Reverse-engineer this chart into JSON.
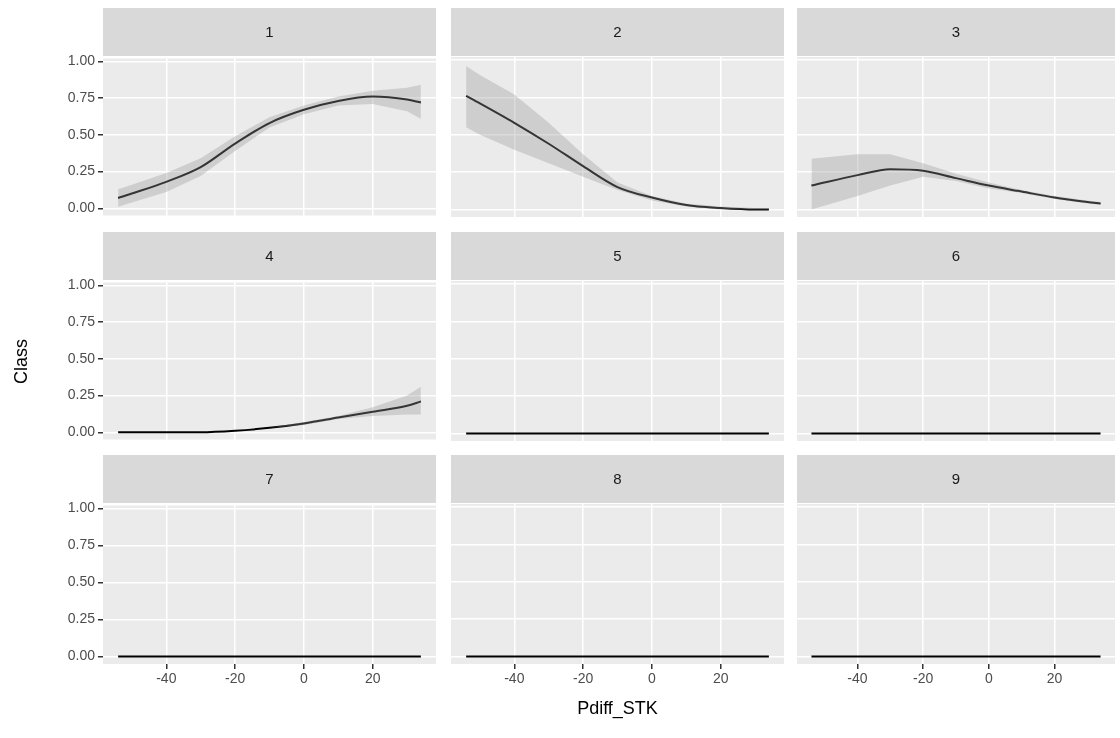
{
  "chart_data": [
    {
      "type": "line",
      "title": "1",
      "x": [
        -54,
        -50,
        -40,
        -30,
        -20,
        -10,
        0,
        10,
        20,
        30,
        34
      ],
      "series": [
        {
          "color": "#000000",
          "values": [
            0.07,
            0.1,
            0.18,
            0.28,
            0.44,
            0.58,
            0.67,
            0.73,
            0.76,
            0.74,
            0.72
          ],
          "lower": [
            0.01,
            0.04,
            0.11,
            0.22,
            0.39,
            0.55,
            0.64,
            0.7,
            0.71,
            0.66,
            0.61
          ],
          "upper": [
            0.13,
            0.16,
            0.24,
            0.34,
            0.49,
            0.62,
            0.7,
            0.76,
            0.8,
            0.82,
            0.84
          ]
        }
      ],
      "xlim": [
        -58.4,
        38.4
      ],
      "xticks": [
        -40,
        -20,
        0,
        20
      ],
      "ylim": [
        -0.05,
        1.02
      ],
      "yticks": [
        {
          "value": 0,
          "label": "0.00"
        },
        {
          "value": 0.25,
          "label": "0.25"
        },
        {
          "value": 0.5,
          "label": "0.50"
        },
        {
          "value": 0.75,
          "label": "0.75"
        },
        {
          "value": 1,
          "label": "1.00"
        }
      ],
      "grid": true,
      "legend": false,
      "tick_labels": "y"
    },
    {
      "type": "line",
      "title": "2",
      "x": [
        -54,
        -50,
        -40,
        -30,
        -20,
        -10,
        0,
        10,
        20,
        30,
        34
      ],
      "series": [
        {
          "color": "#000000",
          "values": [
            0.76,
            0.71,
            0.58,
            0.44,
            0.29,
            0.15,
            0.08,
            0.03,
            0.01,
            0.0,
            0.0
          ],
          "lower": [
            0.55,
            0.5,
            0.4,
            0.31,
            0.22,
            0.13,
            0.06,
            0.02,
            0.0,
            0.0,
            0.0
          ],
          "upper": [
            0.96,
            0.9,
            0.77,
            0.58,
            0.37,
            0.18,
            0.09,
            0.04,
            0.02,
            0.01,
            0.01
          ]
        }
      ],
      "xlim": [
        -58.4,
        38.4
      ],
      "xticks": [
        -40,
        -20,
        0,
        20
      ],
      "ylim": [
        -0.05,
        1.02
      ],
      "yticks": [
        0,
        0.25,
        0.5,
        0.75,
        1
      ],
      "grid": true,
      "legend": false,
      "tick_labels": false
    },
    {
      "type": "line",
      "title": "3",
      "x": [
        -54,
        -40,
        -30,
        -20,
        -10,
        0,
        10,
        20,
        30,
        34
      ],
      "series": [
        {
          "color": "#000000",
          "values": [
            0.16,
            0.23,
            0.27,
            0.26,
            0.21,
            0.16,
            0.12,
            0.08,
            0.05,
            0.04
          ],
          "lower": [
            0.0,
            0.09,
            0.16,
            0.22,
            0.19,
            0.14,
            0.11,
            0.07,
            0.04,
            0.03
          ],
          "upper": [
            0.34,
            0.37,
            0.37,
            0.31,
            0.24,
            0.18,
            0.13,
            0.09,
            0.06,
            0.05
          ]
        }
      ],
      "xlim": [
        -58.4,
        38.4
      ],
      "xticks": [
        -40,
        -20,
        0,
        20
      ],
      "ylim": [
        -0.05,
        1.02
      ],
      "yticks": [
        0,
        0.25,
        0.5,
        0.75,
        1
      ],
      "grid": true,
      "legend": false,
      "tick_labels": false
    },
    {
      "type": "line",
      "title": "4",
      "ylabel": "Class",
      "x": [
        -54,
        -40,
        -30,
        -20,
        -10,
        0,
        10,
        20,
        30,
        34
      ],
      "series": [
        {
          "color": "#000000",
          "values": [
            0,
            0,
            0,
            0.01,
            0.03,
            0.06,
            0.1,
            0.14,
            0.18,
            0.21
          ],
          "lower": [
            0,
            0,
            0,
            0.01,
            0.03,
            0.05,
            0.09,
            0.11,
            0.12,
            0.12
          ],
          "upper": [
            0,
            0,
            0,
            0.01,
            0.03,
            0.07,
            0.11,
            0.17,
            0.25,
            0.31
          ]
        }
      ],
      "xlim": [
        -58.4,
        38.4
      ],
      "xticks": [
        -40,
        -20,
        0,
        20
      ],
      "ylim": [
        -0.05,
        1.02
      ],
      "yticks": [
        {
          "value": 0,
          "label": "0.00"
        },
        {
          "value": 0.25,
          "label": "0.25"
        },
        {
          "value": 0.5,
          "label": "0.50"
        },
        {
          "value": 0.75,
          "label": "0.75"
        },
        {
          "value": 1,
          "label": "1.00"
        }
      ],
      "grid": true,
      "legend": false,
      "tick_labels": "y"
    },
    {
      "type": "line",
      "title": "5",
      "x": [
        -54,
        34
      ],
      "series": [
        {
          "color": "#000000",
          "values": [
            0,
            0
          ]
        }
      ],
      "xlim": [
        -58.4,
        38.4
      ],
      "xticks": [
        -40,
        -20,
        0,
        20
      ],
      "ylim": [
        -0.05,
        1.02
      ],
      "yticks": [
        0,
        0.25,
        0.5,
        0.75,
        1
      ],
      "grid": true,
      "legend": false,
      "tick_labels": false
    },
    {
      "type": "line",
      "title": "6",
      "x": [
        -54,
        34
      ],
      "series": [
        {
          "color": "#000000",
          "values": [
            0,
            0
          ]
        }
      ],
      "xlim": [
        -58.4,
        38.4
      ],
      "xticks": [
        -40,
        -20,
        0,
        20
      ],
      "ylim": [
        -0.05,
        1.02
      ],
      "yticks": [
        0,
        0.25,
        0.5,
        0.75,
        1
      ],
      "grid": true,
      "legend": false,
      "tick_labels": false
    },
    {
      "type": "line",
      "title": "7",
      "x": [
        -54,
        34
      ],
      "series": [
        {
          "color": "#000000",
          "values": [
            0,
            0
          ]
        }
      ],
      "xlim": [
        -58.4,
        38.4
      ],
      "xticks": [
        -40,
        -20,
        0,
        20
      ],
      "ylim": [
        -0.05,
        1.02
      ],
      "yticks": [
        {
          "value": 0,
          "label": "0.00"
        },
        {
          "value": 0.25,
          "label": "0.25"
        },
        {
          "value": 0.5,
          "label": "0.50"
        },
        {
          "value": 0.75,
          "label": "0.75"
        },
        {
          "value": 1,
          "label": "1.00"
        }
      ],
      "grid": true,
      "legend": false
    },
    {
      "type": "line",
      "title": "8",
      "xlabel": "Pdiff_STK",
      "x": [
        -54,
        34
      ],
      "series": [
        {
          "color": "#000000",
          "values": [
            0,
            0
          ]
        }
      ],
      "xlim": [
        -58.4,
        38.4
      ],
      "xticks": [
        -40,
        -20,
        0,
        20
      ],
      "ylim": [
        -0.05,
        1.02
      ],
      "yticks": [
        0,
        0.25,
        0.5,
        0.75,
        1
      ],
      "grid": true,
      "legend": false,
      "tick_labels": "x"
    },
    {
      "type": "line",
      "title": "9",
      "x": [
        -54,
        34
      ],
      "series": [
        {
          "color": "#000000",
          "values": [
            0,
            0
          ]
        }
      ],
      "xlim": [
        -58.4,
        38.4
      ],
      "xticks": [
        -40,
        -20,
        0,
        20
      ],
      "ylim": [
        -0.05,
        1.02
      ],
      "yticks": [
        0,
        0.25,
        0.5,
        0.75,
        1
      ],
      "grid": true,
      "legend": false,
      "tick_labels": "x"
    }
  ]
}
